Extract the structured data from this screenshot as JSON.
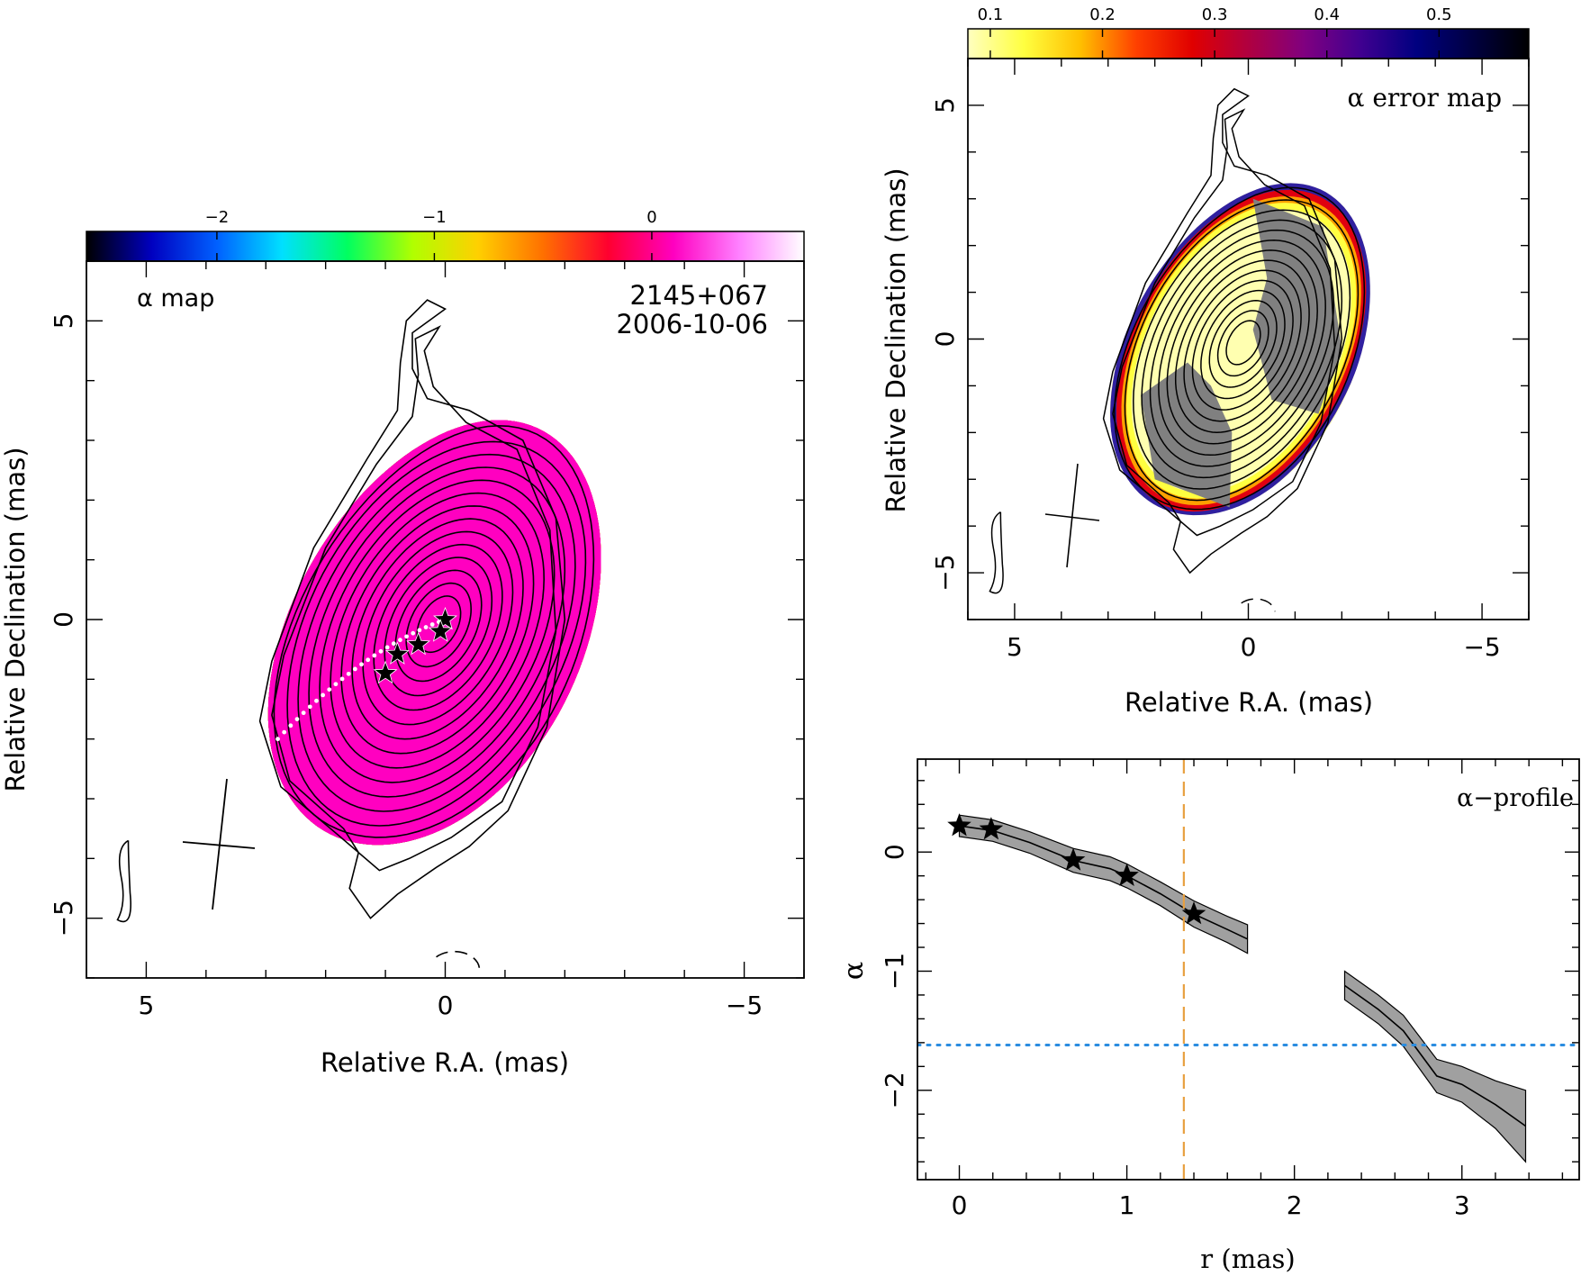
{
  "chart_data": [
    {
      "panel": "alpha-map",
      "type": "heatmap",
      "title": "α map",
      "annotation_lines": [
        "2145+067",
        "2006-10-06"
      ],
      "xlabel": "Relative R.A. (mas)",
      "ylabel": "Relative Declination (mas)",
      "xlim": [
        6,
        -6
      ],
      "ylim": [
        -6,
        6
      ],
      "xticks": [
        5,
        0,
        -5
      ],
      "yticks": [
        5,
        0,
        -5
      ],
      "colorbar": {
        "range": [
          -2.6,
          0.7
        ],
        "ticks": [
          -2,
          -1,
          0
        ],
        "colors": [
          "#000000",
          "#0000c0",
          "#0060ff",
          "#00e0ff",
          "#00ff60",
          "#b0ff00",
          "#ffd000",
          "#ff7000",
          "#ff0030",
          "#ff00c0",
          "#ff80ff",
          "#ffffff"
        ]
      },
      "trace_points": [
        {
          "ra": 0.0,
          "dec": 0.0
        },
        {
          "ra": 0.08,
          "dec": -0.2
        },
        {
          "ra": 0.45,
          "dec": -0.42
        },
        {
          "ra": 0.8,
          "dec": -0.58
        },
        {
          "ra": 1.0,
          "dec": -0.9
        }
      ]
    },
    {
      "panel": "alpha-error-map",
      "type": "heatmap",
      "title": "α error map",
      "xlabel": "Relative R.A. (mas)",
      "ylabel": "Relative Declination (mas)",
      "xlim": [
        6,
        -6
      ],
      "ylim": [
        -6,
        6
      ],
      "xticks": [
        5,
        0,
        -5
      ],
      "yticks": [
        5,
        0,
        -5
      ],
      "colorbar": {
        "range": [
          0.08,
          0.58
        ],
        "ticks": [
          0.1,
          0.2,
          0.3,
          0.4,
          0.5
        ],
        "colors": [
          "#ffffc0",
          "#ffff40",
          "#ffc000",
          "#ff4000",
          "#e00000",
          "#b00040",
          "#800080",
          "#400090",
          "#000080",
          "#000040",
          "#000000"
        ]
      }
    },
    {
      "panel": "alpha-profile",
      "type": "line",
      "title": "α−profile",
      "xlabel": "r (mas)",
      "ylabel": "α",
      "xlim": [
        -0.25,
        3.7
      ],
      "ylim": [
        -2.75,
        0.78
      ],
      "xticks": [
        0,
        1,
        2,
        3
      ],
      "yticks": [
        0,
        -1,
        -2
      ],
      "series": [
        {
          "x": [
            0.0,
            0.2,
            0.42,
            0.68,
            0.9,
            1.0,
            1.2,
            1.4,
            1.6,
            1.72
          ],
          "y": [
            0.22,
            0.18,
            0.08,
            -0.07,
            -0.14,
            -0.2,
            -0.35,
            -0.52,
            -0.65,
            -0.73
          ],
          "err": [
            0.09,
            0.09,
            0.09,
            0.1,
            0.1,
            0.1,
            0.1,
            0.11,
            0.11,
            0.12
          ]
        },
        {
          "x": [
            2.3,
            2.5,
            2.65,
            2.85,
            3.0,
            3.2,
            3.38
          ],
          "y": [
            -1.12,
            -1.32,
            -1.5,
            -1.88,
            -1.95,
            -2.12,
            -2.3
          ],
          "err": [
            0.12,
            0.12,
            0.13,
            0.14,
            0.15,
            0.2,
            0.3
          ]
        }
      ],
      "star_points": [
        {
          "x": 0.0,
          "y": 0.22
        },
        {
          "x": 0.19,
          "y": 0.19
        },
        {
          "x": 0.68,
          "y": -0.07
        },
        {
          "x": 1.0,
          "y": -0.2
        },
        {
          "x": 1.4,
          "y": -0.52
        }
      ],
      "vline_x": 1.34,
      "vline_color": "#e8a040",
      "hline_y": -1.62,
      "hline_color": "#2a8ce0"
    }
  ]
}
